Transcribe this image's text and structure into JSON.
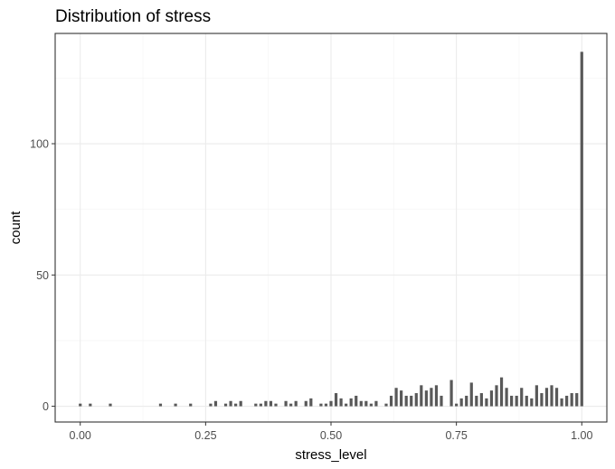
{
  "chart_data": {
    "type": "bar",
    "title": "Distribution of stress",
    "xlabel": "stress_level",
    "ylabel": "count",
    "xlim": [
      -0.05,
      1.05
    ],
    "ylim": [
      -6,
      142
    ],
    "x_ticks": [
      0.0,
      0.25,
      0.5,
      0.75,
      1.0
    ],
    "x_tick_labels": [
      "0.00",
      "0.25",
      "0.50",
      "0.75",
      "1.00"
    ],
    "y_ticks": [
      0,
      50,
      100
    ],
    "y_tick_labels": [
      "0",
      "50",
      "100"
    ],
    "grid": true,
    "bar_color": "#595959",
    "bins": [
      {
        "x": 0.0,
        "count": 1
      },
      {
        "x": 0.02,
        "count": 1
      },
      {
        "x": 0.06,
        "count": 1
      },
      {
        "x": 0.16,
        "count": 1
      },
      {
        "x": 0.19,
        "count": 1
      },
      {
        "x": 0.22,
        "count": 1
      },
      {
        "x": 0.26,
        "count": 1
      },
      {
        "x": 0.27,
        "count": 2
      },
      {
        "x": 0.29,
        "count": 1
      },
      {
        "x": 0.3,
        "count": 2
      },
      {
        "x": 0.31,
        "count": 1
      },
      {
        "x": 0.32,
        "count": 2
      },
      {
        "x": 0.35,
        "count": 1
      },
      {
        "x": 0.36,
        "count": 1
      },
      {
        "x": 0.37,
        "count": 2
      },
      {
        "x": 0.38,
        "count": 2
      },
      {
        "x": 0.39,
        "count": 1
      },
      {
        "x": 0.41,
        "count": 2
      },
      {
        "x": 0.42,
        "count": 1
      },
      {
        "x": 0.43,
        "count": 2
      },
      {
        "x": 0.45,
        "count": 2
      },
      {
        "x": 0.46,
        "count": 3
      },
      {
        "x": 0.48,
        "count": 1
      },
      {
        "x": 0.49,
        "count": 1
      },
      {
        "x": 0.5,
        "count": 2
      },
      {
        "x": 0.51,
        "count": 5
      },
      {
        "x": 0.52,
        "count": 3
      },
      {
        "x": 0.53,
        "count": 1
      },
      {
        "x": 0.54,
        "count": 3
      },
      {
        "x": 0.55,
        "count": 4
      },
      {
        "x": 0.56,
        "count": 2
      },
      {
        "x": 0.57,
        "count": 2
      },
      {
        "x": 0.58,
        "count": 1
      },
      {
        "x": 0.59,
        "count": 2
      },
      {
        "x": 0.61,
        "count": 1
      },
      {
        "x": 0.62,
        "count": 4
      },
      {
        "x": 0.63,
        "count": 7
      },
      {
        "x": 0.64,
        "count": 6
      },
      {
        "x": 0.65,
        "count": 4
      },
      {
        "x": 0.66,
        "count": 4
      },
      {
        "x": 0.67,
        "count": 5
      },
      {
        "x": 0.68,
        "count": 8
      },
      {
        "x": 0.69,
        "count": 6
      },
      {
        "x": 0.7,
        "count": 7
      },
      {
        "x": 0.71,
        "count": 8
      },
      {
        "x": 0.72,
        "count": 4
      },
      {
        "x": 0.74,
        "count": 10
      },
      {
        "x": 0.75,
        "count": 1
      },
      {
        "x": 0.76,
        "count": 3
      },
      {
        "x": 0.77,
        "count": 4
      },
      {
        "x": 0.78,
        "count": 9
      },
      {
        "x": 0.79,
        "count": 4
      },
      {
        "x": 0.8,
        "count": 5
      },
      {
        "x": 0.81,
        "count": 3
      },
      {
        "x": 0.82,
        "count": 6
      },
      {
        "x": 0.83,
        "count": 8
      },
      {
        "x": 0.84,
        "count": 11
      },
      {
        "x": 0.85,
        "count": 7
      },
      {
        "x": 0.86,
        "count": 4
      },
      {
        "x": 0.87,
        "count": 4
      },
      {
        "x": 0.88,
        "count": 7
      },
      {
        "x": 0.89,
        "count": 4
      },
      {
        "x": 0.9,
        "count": 3
      },
      {
        "x": 0.91,
        "count": 8
      },
      {
        "x": 0.92,
        "count": 5
      },
      {
        "x": 0.93,
        "count": 7
      },
      {
        "x": 0.94,
        "count": 8
      },
      {
        "x": 0.95,
        "count": 7
      },
      {
        "x": 0.96,
        "count": 3
      },
      {
        "x": 0.97,
        "count": 4
      },
      {
        "x": 0.98,
        "count": 5
      },
      {
        "x": 0.99,
        "count": 5
      },
      {
        "x": 1.0,
        "count": 135
      }
    ]
  }
}
